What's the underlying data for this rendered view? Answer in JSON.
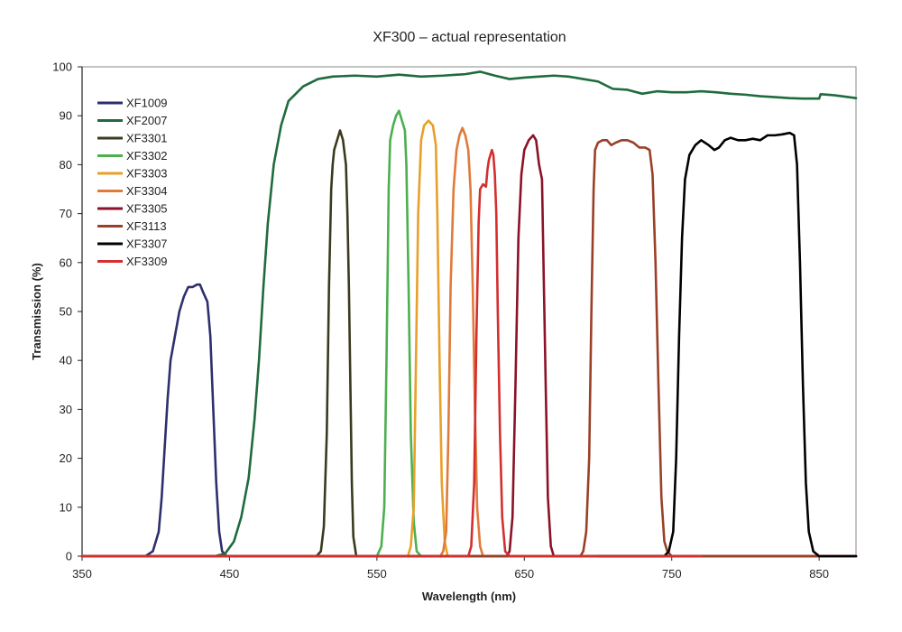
{
  "chart_data": {
    "type": "line",
    "title": "XF300 – actual representation",
    "xlabel": "Wavelength (nm)",
    "ylabel": "Transmission (%)",
    "xlim": [
      350,
      875
    ],
    "ylim": [
      0,
      100
    ],
    "xticks": [
      350,
      450,
      550,
      650,
      750,
      850
    ],
    "yticks": [
      0,
      10,
      20,
      30,
      40,
      50,
      60,
      70,
      80,
      90,
      100
    ],
    "grid": false,
    "legend_position": "top-left",
    "series": [
      {
        "name": "XF1009",
        "color": "#2e2f6e",
        "points": [
          [
            350,
            0
          ],
          [
            393,
            0
          ],
          [
            398,
            1
          ],
          [
            402,
            5
          ],
          [
            404,
            12
          ],
          [
            406,
            22
          ],
          [
            408,
            32
          ],
          [
            410,
            40
          ],
          [
            413,
            45
          ],
          [
            416,
            50
          ],
          [
            419,
            53
          ],
          [
            422,
            55
          ],
          [
            425,
            55
          ],
          [
            428,
            55.5
          ],
          [
            430,
            55.5
          ],
          [
            432,
            54
          ],
          [
            435,
            52
          ],
          [
            437,
            45
          ],
          [
            439,
            30
          ],
          [
            441,
            15
          ],
          [
            443,
            5
          ],
          [
            445,
            1
          ],
          [
            448,
            0
          ],
          [
            875,
            0
          ]
        ]
      },
      {
        "name": "XF2007",
        "color": "#1f6b3e",
        "points": [
          [
            350,
            0
          ],
          [
            440,
            0
          ],
          [
            447,
            0.5
          ],
          [
            453,
            3
          ],
          [
            458,
            8
          ],
          [
            463,
            16
          ],
          [
            467,
            28
          ],
          [
            470,
            40
          ],
          [
            473,
            55
          ],
          [
            476,
            68
          ],
          [
            480,
            80
          ],
          [
            485,
            88
          ],
          [
            490,
            93
          ],
          [
            500,
            96
          ],
          [
            510,
            97.5
          ],
          [
            520,
            98
          ],
          [
            535,
            98.2
          ],
          [
            550,
            98
          ],
          [
            565,
            98.4
          ],
          [
            580,
            98
          ],
          [
            595,
            98.2
          ],
          [
            610,
            98.5
          ],
          [
            620,
            99
          ],
          [
            630,
            98.2
          ],
          [
            640,
            97.5
          ],
          [
            650,
            97.8
          ],
          [
            660,
            98
          ],
          [
            670,
            98.2
          ],
          [
            680,
            98
          ],
          [
            690,
            97.5
          ],
          [
            700,
            97
          ],
          [
            710,
            95.5
          ],
          [
            720,
            95.3
          ],
          [
            730,
            94.5
          ],
          [
            740,
            95
          ],
          [
            750,
            94.8
          ],
          [
            760,
            94.8
          ],
          [
            770,
            95
          ],
          [
            780,
            94.8
          ],
          [
            790,
            94.5
          ],
          [
            800,
            94.3
          ],
          [
            810,
            94
          ],
          [
            820,
            93.8
          ],
          [
            830,
            93.6
          ],
          [
            840,
            93.5
          ],
          [
            850,
            93.5
          ],
          [
            851,
            94.4
          ],
          [
            860,
            94.2
          ],
          [
            870,
            93.8
          ],
          [
            875,
            93.6
          ]
        ]
      },
      {
        "name": "XF3301",
        "color": "#3b3a1f",
        "points": [
          [
            350,
            0
          ],
          [
            509,
            0
          ],
          [
            512,
            1
          ],
          [
            514,
            6
          ],
          [
            516,
            25
          ],
          [
            517.5,
            55
          ],
          [
            519,
            75
          ],
          [
            520,
            80
          ],
          [
            521,
            83
          ],
          [
            523,
            85
          ],
          [
            525,
            87
          ],
          [
            527,
            85
          ],
          [
            529,
            80
          ],
          [
            530,
            70
          ],
          [
            531,
            55
          ],
          [
            532,
            35
          ],
          [
            533,
            15
          ],
          [
            534,
            4
          ],
          [
            536,
            0
          ],
          [
            875,
            0
          ]
        ]
      },
      {
        "name": "XF3302",
        "color": "#4caf50",
        "points": [
          [
            350,
            0
          ],
          [
            550,
            0
          ],
          [
            553,
            2
          ],
          [
            555,
            10
          ],
          [
            556.5,
            40
          ],
          [
            558,
            75
          ],
          [
            559,
            85
          ],
          [
            561,
            88
          ],
          [
            563,
            90
          ],
          [
            565,
            91
          ],
          [
            567,
            89
          ],
          [
            569,
            87
          ],
          [
            570,
            80
          ],
          [
            571.5,
            55
          ],
          [
            573,
            25
          ],
          [
            575,
            7
          ],
          [
            577,
            1
          ],
          [
            580,
            0
          ],
          [
            875,
            0
          ]
        ]
      },
      {
        "name": "XF3303",
        "color": "#e8a02a",
        "points": [
          [
            350,
            0
          ],
          [
            571,
            0
          ],
          [
            573,
            2
          ],
          [
            575,
            10
          ],
          [
            576.5,
            40
          ],
          [
            578,
            70
          ],
          [
            580,
            85
          ],
          [
            582,
            88
          ],
          [
            585,
            89
          ],
          [
            588,
            88
          ],
          [
            590,
            84
          ],
          [
            591,
            70
          ],
          [
            592.5,
            40
          ],
          [
            594,
            15
          ],
          [
            596,
            3
          ],
          [
            598,
            0
          ],
          [
            875,
            0
          ]
        ]
      },
      {
        "name": "XF3304",
        "color": "#e07a3a",
        "points": [
          [
            350,
            0
          ],
          [
            593,
            0
          ],
          [
            595,
            1
          ],
          [
            597,
            5
          ],
          [
            598.5,
            25
          ],
          [
            600,
            55
          ],
          [
            602,
            75
          ],
          [
            604,
            83
          ],
          [
            606,
            86
          ],
          [
            608,
            87.5
          ],
          [
            610,
            86
          ],
          [
            612,
            83
          ],
          [
            613.5,
            75
          ],
          [
            615,
            55
          ],
          [
            616.5,
            30
          ],
          [
            618,
            10
          ],
          [
            620,
            2
          ],
          [
            622,
            0
          ],
          [
            875,
            0
          ]
        ]
      },
      {
        "name": "XF3305",
        "color": "#8b1228",
        "points": [
          [
            350,
            0
          ],
          [
            638,
            0
          ],
          [
            640,
            1
          ],
          [
            642,
            8
          ],
          [
            644,
            35
          ],
          [
            646,
            65
          ],
          [
            648,
            78
          ],
          [
            650,
            83
          ],
          [
            653,
            85
          ],
          [
            656,
            86
          ],
          [
            658,
            85
          ],
          [
            660,
            80
          ],
          [
            662,
            77
          ],
          [
            663,
            60
          ],
          [
            664.5,
            35
          ],
          [
            666,
            12
          ],
          [
            668,
            2
          ],
          [
            670,
            0
          ],
          [
            875,
            0
          ]
        ]
      },
      {
        "name": "XF3113",
        "color": "#9a4028",
        "points": [
          [
            350,
            0
          ],
          [
            688,
            0
          ],
          [
            690,
            1
          ],
          [
            692,
            5
          ],
          [
            694,
            20
          ],
          [
            695.5,
            50
          ],
          [
            697,
            75
          ],
          [
            698,
            83
          ],
          [
            700,
            84.5
          ],
          [
            703,
            85
          ],
          [
            706,
            85
          ],
          [
            709,
            84
          ],
          [
            712,
            84.5
          ],
          [
            716,
            85
          ],
          [
            720,
            85
          ],
          [
            724,
            84.5
          ],
          [
            728,
            83.5
          ],
          [
            732,
            83.5
          ],
          [
            735,
            83
          ],
          [
            737,
            78
          ],
          [
            739,
            60
          ],
          [
            741,
            35
          ],
          [
            743,
            12
          ],
          [
            745,
            3
          ],
          [
            747,
            1
          ],
          [
            750,
            0
          ],
          [
            875,
            0
          ]
        ]
      },
      {
        "name": "XF3307",
        "color": "#000000",
        "points": [
          [
            700,
            0
          ],
          [
            745,
            0
          ],
          [
            748,
            1
          ],
          [
            751,
            5
          ],
          [
            753,
            20
          ],
          [
            755,
            45
          ],
          [
            757,
            65
          ],
          [
            759,
            77
          ],
          [
            762,
            82
          ],
          [
            766,
            84
          ],
          [
            770,
            85
          ],
          [
            775,
            84
          ],
          [
            779,
            83
          ],
          [
            782,
            83.5
          ],
          [
            786,
            85
          ],
          [
            790,
            85.5
          ],
          [
            795,
            85
          ],
          [
            800,
            85
          ],
          [
            805,
            85.3
          ],
          [
            810,
            85
          ],
          [
            815,
            86
          ],
          [
            820,
            86
          ],
          [
            825,
            86.2
          ],
          [
            830,
            86.5
          ],
          [
            833,
            86
          ],
          [
            835,
            80
          ],
          [
            837,
            60
          ],
          [
            839,
            35
          ],
          [
            841,
            15
          ],
          [
            843,
            5
          ],
          [
            846,
            1
          ],
          [
            850,
            0
          ],
          [
            875,
            0
          ]
        ]
      },
      {
        "name": "XF3309",
        "color": "#d32f2f",
        "points": [
          [
            350,
            0
          ],
          [
            612,
            0
          ],
          [
            614,
            2
          ],
          [
            616,
            15
          ],
          [
            617.5,
            45
          ],
          [
            619,
            68
          ],
          [
            620,
            75
          ],
          [
            622,
            76
          ],
          [
            624,
            75.5
          ],
          [
            625,
            79
          ],
          [
            626,
            81
          ],
          [
            627,
            82
          ],
          [
            628,
            83
          ],
          [
            629,
            82
          ],
          [
            630,
            78
          ],
          [
            631,
            70
          ],
          [
            632,
            50
          ],
          [
            633.5,
            25
          ],
          [
            635,
            8
          ],
          [
            637,
            1
          ],
          [
            640,
            0
          ],
          [
            770,
            0
          ]
        ]
      }
    ]
  }
}
